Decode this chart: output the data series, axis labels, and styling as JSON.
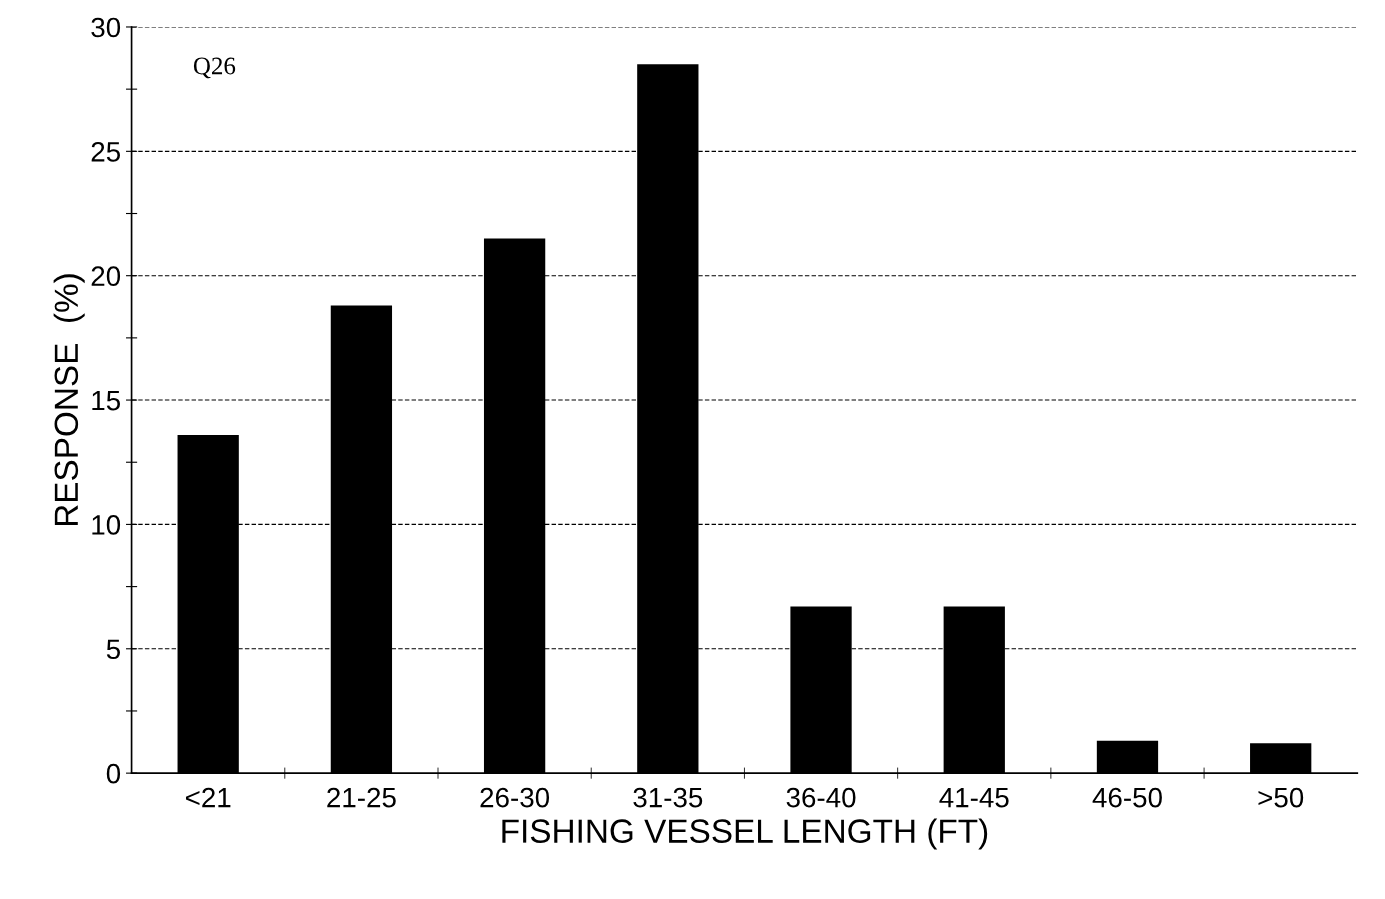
{
  "chart_data": {
    "type": "bar",
    "xlabel": "FISHING VESSEL LENGTH (FT)",
    "ylabel": "RESPONSE  (%)",
    "annotations": [
      "Q26"
    ],
    "categories": [
      "<21",
      "21-25",
      "26-30",
      "31-35",
      "36-40",
      "41-45",
      "46-50",
      ">50"
    ],
    "values": [
      13.6,
      18.8,
      21.5,
      28.5,
      6.7,
      6.7,
      1.3,
      1.2
    ],
    "color": "#000000",
    "ylim": [
      0,
      30
    ],
    "yticks": [
      0,
      {
        "value": 2.5,
        "label": null
      },
      5,
      {
        "value": 7.5,
        "label": null
      },
      10,
      {
        "value": 12.5,
        "label": null
      },
      15,
      {
        "value": 17.5,
        "label": null
      },
      20,
      {
        "value": 22.5,
        "label": null
      },
      25,
      {
        "value": 27.5,
        "label": null
      },
      30
    ],
    "grid": "y",
    "line_style": "dashed"
  }
}
